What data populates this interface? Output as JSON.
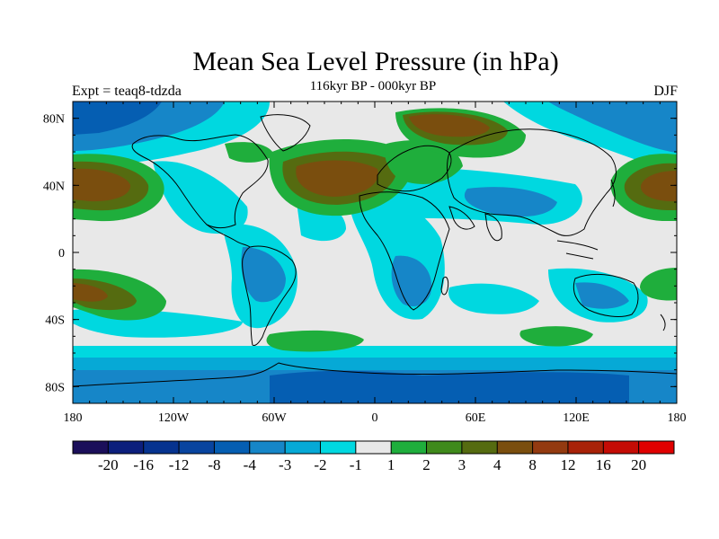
{
  "header": {
    "title": "Mean Sea Level Pressure (in hPa)",
    "subtitle": "116kyr BP - 000kyr BP",
    "left_label": "Expt = teaq8-tdzda",
    "right_label": "DJF"
  },
  "map": {
    "projection": "cylindrical equidistant",
    "lon_range": [
      -180,
      180
    ],
    "lat_range": [
      -90,
      90
    ],
    "lon_ticks": [
      {
        "value": -180,
        "label": "180"
      },
      {
        "value": -120,
        "label": "120W"
      },
      {
        "value": -60,
        "label": "60W"
      },
      {
        "value": 0,
        "label": "0"
      },
      {
        "value": 60,
        "label": "60E"
      },
      {
        "value": 120,
        "label": "120E"
      },
      {
        "value": 180,
        "label": "180"
      }
    ],
    "lat_ticks": [
      {
        "value": 80,
        "label": "80N"
      },
      {
        "value": 40,
        "label": "40N"
      },
      {
        "value": 0,
        "label": "0"
      },
      {
        "value": -40,
        "label": "40S"
      },
      {
        "value": -80,
        "label": "80S"
      }
    ],
    "background_color": "#e8e8e8",
    "coastline_color": "#000000"
  },
  "colorbar": {
    "levels": [
      "-20",
      "-16",
      "-12",
      "-8",
      "-4",
      "-3",
      "-2",
      "-1",
      "1",
      "2",
      "3",
      "4",
      "8",
      "12",
      "16",
      "20"
    ],
    "colors": [
      "#1b0f5a",
      "#0c1f7c",
      "#06338f",
      "#08449f",
      "#055eb2",
      "#1686c8",
      "#06a9d6",
      "#00d8e0",
      "#e8e8e8",
      "#1fae3c",
      "#3f8a1c",
      "#556b10",
      "#7a4e0e",
      "#933a10",
      "#a82208",
      "#c40c05",
      "#e00000"
    ]
  }
}
